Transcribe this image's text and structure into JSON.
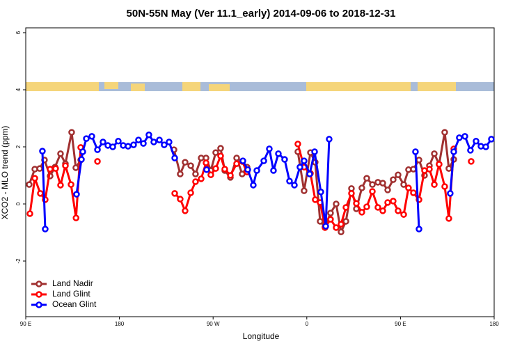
{
  "chart_data": {
    "type": "line",
    "title": "50N-55N May (Ver 11.1_early)   2014-09-06 to 2018-12-31",
    "x_label": "Longitude",
    "y_label": "XCO2 - MLO trend (ppm)",
    "xlim": [
      90,
      540
    ],
    "ylim": [
      -3.95,
      6.17
    ],
    "xticks": [
      {
        "value": 90,
        "label": "90 E"
      },
      {
        "value": 180,
        "label": "180"
      },
      {
        "value": 270,
        "label": "90 W"
      },
      {
        "value": 360,
        "label": "0"
      },
      {
        "value": 450,
        "label": "90 E"
      },
      {
        "value": 540,
        "label": "180"
      }
    ],
    "yticks": [
      -2,
      0,
      2,
      4,
      6
    ],
    "grid": false,
    "legend": "bottom-left",
    "series": [
      {
        "name": "Land Nadir",
        "color": "#a03030",
        "x": [
          93.3,
          98.7,
          103.4,
          108,
          113.4,
          118.1,
          123.4,
          128.1,
          134.1,
          138.1,
          142.8,
          188,
          232.4,
          238.4,
          243.1,
          248.5,
          253.1,
          258.5,
          263.2,
          267.8,
          272.5,
          277.2,
          281.2,
          286.6,
          292.6,
          297.9,
          302.6,
          327,
          351.4,
          357.4,
          363.5,
          368.1,
          372.8,
          377.5,
          382.8,
          388.2,
          392.9,
          397.6,
          402.9,
          407.6,
          412.9,
          417.6,
          423,
          428.3,
          433,
          437.7,
          443,
          447.7,
          453.1,
          457.7,
          462.4,
          467.8,
          473.1,
          477.8,
          482.5,
          487.1,
          492.5,
          496.5,
          501.2
        ],
        "values": [
          0.68,
          1.22,
          1.24,
          1.54,
          0.98,
          1.29,
          1.76,
          1.41,
          2.51,
          1.27,
          1.54,
          null,
          1.9,
          1.05,
          1.46,
          1.34,
          1.05,
          1.61,
          1.61,
          1.17,
          1.8,
          1.95,
          1.17,
          0.93,
          1.61,
          1.05,
          1.29,
          null,
          1.83,
          0.46,
          1.8,
          1.46,
          -0.61,
          -0.8,
          -0.32,
          0,
          -0.98,
          -0.61,
          0.54,
          -0.17,
          0.56,
          0.9,
          0.68,
          0.76,
          0.73,
          0.49,
          0.85,
          1.02,
          0.68,
          1.2,
          1.22,
          1.54,
          1,
          1.34,
          1.76,
          1.39,
          2.51,
          1.24,
          1.56
        ]
      },
      {
        "name": "Land Glint",
        "color": "#ff0000",
        "x": [
          94,
          98.7,
          104,
          108.7,
          113.4,
          118.7,
          123.4,
          128.1,
          133.5,
          138.3,
          142.8,
          150,
          158.9,
          200,
          233.1,
          238.4,
          243.1,
          248.5,
          253.1,
          258.5,
          263.2,
          267.8,
          272.5,
          277.2,
          281.2,
          286.6,
          292.6,
          297.9,
          302.6,
          327,
          351.4,
          357.4,
          363.5,
          368.1,
          372.8,
          377.5,
          382.8,
          388.2,
          392.9,
          397.6,
          402.9,
          407.6,
          412.9,
          417.6,
          423,
          428.3,
          433,
          437.7,
          443,
          447.7,
          453.1,
          457.7,
          462.4,
          467.8,
          473.1,
          477.8,
          482.5,
          487.1,
          492.5,
          496.5,
          501.2,
          510,
          517.9
        ],
        "values": [
          -0.34,
          0.9,
          0.37,
          0.15,
          1.22,
          1.24,
          0.66,
          1.34,
          0.68,
          -0.49,
          1.98,
          null,
          1.49,
          null,
          0.37,
          0.17,
          -0.24,
          0.39,
          0.78,
          0.88,
          1.44,
          1.02,
          1.24,
          1.68,
          1.22,
          1,
          1.41,
          1.49,
          1.12,
          null,
          2.1,
          1.29,
          1.07,
          0.15,
          0.05,
          -0.83,
          -0.54,
          -0.83,
          -0.71,
          -0.12,
          0.37,
          0.02,
          -0.29,
          -0.1,
          0.44,
          -0.12,
          -0.24,
          0.05,
          0.1,
          -0.24,
          -0.37,
          0.56,
          0.39,
          0.15,
          1.17,
          1.22,
          0.68,
          1.39,
          0.61,
          -0.51,
          1.93,
          null,
          1.49
        ]
      },
      {
        "name": "Ocean Glint",
        "color": "#0000ff",
        "x": [
          106,
          108.7,
          120,
          138.8,
          143.5,
          144.8,
          148.2,
          153.5,
          158.9,
          164.2,
          168.9,
          173.6,
          178.9,
          183.6,
          188.3,
          193.6,
          198.3,
          203,
          208.3,
          213,
          218.4,
          223,
          227.7,
          233.1,
          250,
          263.8,
          280,
          298.6,
          303.3,
          308.6,
          312,
          318.7,
          324,
          328,
          332.7,
          338.7,
          343.4,
          348.1,
          353.4,
          357.4,
          362.8,
          367.5,
          373.5,
          378.2,
          381.5,
          420,
          464.4,
          467.8,
          480,
          497.8,
          501.2,
          506.5,
          511.9,
          517.2,
          522.6,
          527.3,
          532,
          537.3
        ],
        "values": [
          1.85,
          -0.88,
          null,
          0.34,
          1.56,
          1.83,
          2.29,
          2.37,
          1.9,
          2.17,
          2.05,
          2,
          2.2,
          2.05,
          2.02,
          2.07,
          2.24,
          2.12,
          2.42,
          2.17,
          2.24,
          2.07,
          2.17,
          1.61,
          null,
          1.2,
          null,
          1.51,
          1.2,
          0.66,
          1.17,
          1.51,
          1.93,
          1.17,
          1.76,
          1.56,
          0.8,
          0.66,
          1.29,
          1.51,
          1.05,
          1.83,
          0.42,
          -0.78,
          2.27,
          null,
          1.83,
          -0.88,
          null,
          0.37,
          1.83,
          2.32,
          2.37,
          1.88,
          2.2,
          2.02,
          2,
          2.27
        ]
      }
    ]
  }
}
